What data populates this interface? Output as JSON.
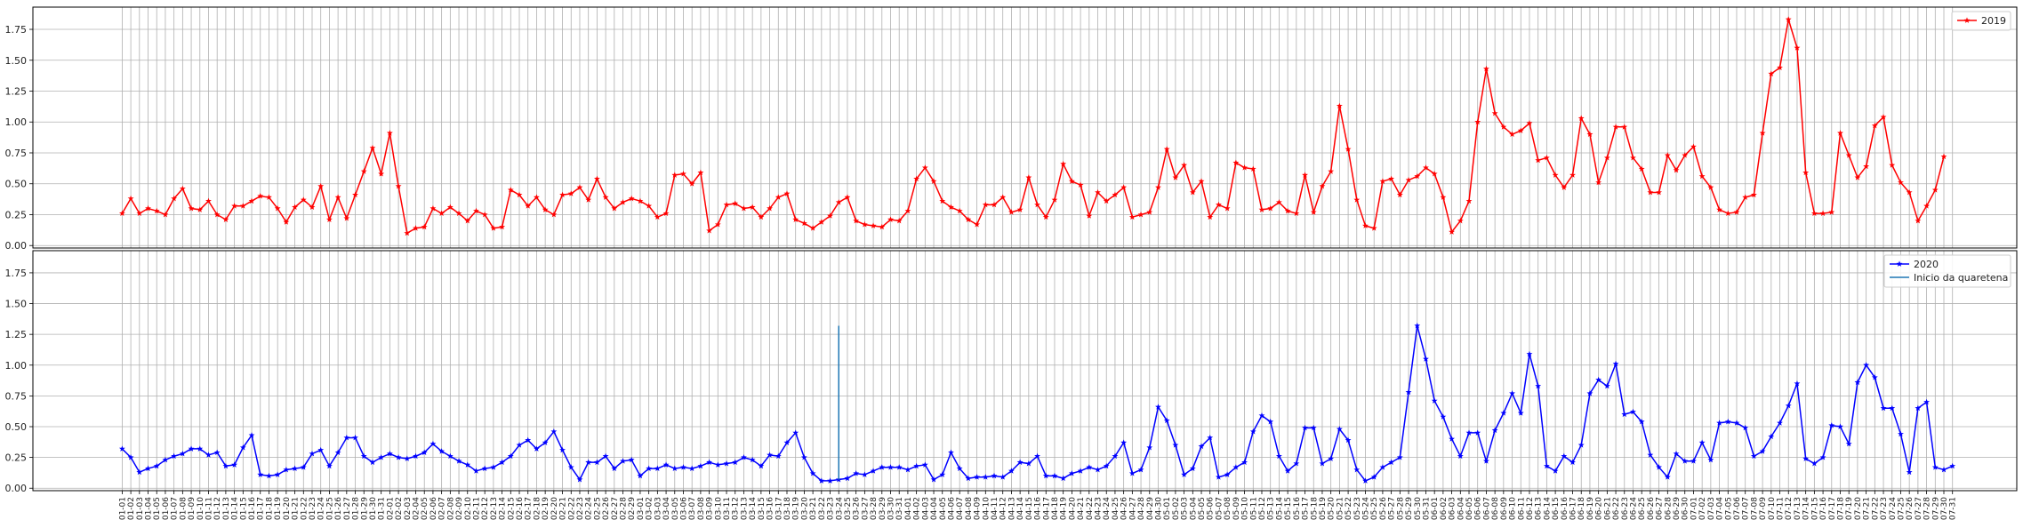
{
  "chart_data": [
    {
      "type": "line",
      "title": "",
      "xlabel": "",
      "ylabel": "",
      "ylim": [
        -0.02,
        1.93
      ],
      "yticks": [
        "0.00",
        "0.25",
        "0.50",
        "0.75",
        "1.00",
        "1.25",
        "1.50",
        "1.75"
      ],
      "grid": true,
      "legend": "top-right",
      "series": [
        {
          "name": "2019",
          "color": "#ff0000",
          "marker": "star",
          "values": [
            0.26,
            0.38,
            0.26,
            0.3,
            0.28,
            0.25,
            0.38,
            0.46,
            0.3,
            0.29,
            0.36,
            0.25,
            0.21,
            0.32,
            0.32,
            0.36,
            0.4,
            0.39,
            0.3,
            0.19,
            0.31,
            0.37,
            0.31,
            0.48,
            0.21,
            0.39,
            0.22,
            0.41,
            0.6,
            0.79,
            0.58,
            0.91,
            0.48,
            0.1,
            0.14,
            0.15,
            0.3,
            0.26,
            0.31,
            0.26,
            0.2,
            0.28,
            0.25,
            0.14,
            0.15,
            0.45,
            0.41,
            0.32,
            0.39,
            0.29,
            0.25,
            0.41,
            0.42,
            0.47,
            0.37,
            0.54,
            0.39,
            0.3,
            0.35,
            0.38,
            0.36,
            0.32,
            0.23,
            0.26,
            0.57,
            0.58,
            0.5,
            0.59,
            0.12,
            0.17,
            0.33,
            0.34,
            0.3,
            0.31,
            0.23,
            0.3,
            0.39,
            0.42,
            0.21,
            0.18,
            0.14,
            0.19,
            0.24,
            0.35,
            0.39,
            0.2,
            0.17,
            0.16,
            0.15,
            0.21,
            0.2,
            0.28,
            0.54,
            0.63,
            0.52,
            0.36,
            0.31,
            0.28,
            0.21,
            0.17,
            0.33,
            0.33,
            0.39,
            0.27,
            0.29,
            0.55,
            0.33,
            0.23,
            0.37,
            0.66,
            0.52,
            0.49,
            0.24,
            0.43,
            0.36,
            0.41,
            0.47,
            0.23,
            0.25,
            0.27,
            0.47,
            0.78,
            0.55,
            0.65,
            0.43,
            0.52,
            0.23,
            0.33,
            0.3,
            0.67,
            0.63,
            0.62,
            0.29,
            0.3,
            0.35,
            0.28,
            0.26,
            0.57,
            0.27,
            0.48,
            0.6,
            1.13,
            0.78,
            0.37,
            0.16,
            0.14,
            0.52,
            0.54,
            0.41,
            0.53,
            0.56,
            0.63,
            0.58,
            0.39,
            0.11,
            0.2,
            0.36,
            1.0,
            1.43,
            1.07,
            0.96,
            0.9,
            0.93,
            0.99,
            0.69,
            0.71,
            0.57,
            0.47,
            0.57,
            1.03,
            0.9,
            0.51,
            0.71,
            0.96,
            0.96,
            0.71,
            0.62,
            0.43,
            0.43,
            0.73,
            0.61,
            0.73,
            0.8,
            0.56,
            0.47,
            0.29,
            0.26,
            0.27,
            0.39,
            0.41,
            0.91,
            1.39,
            1.44,
            1.83,
            1.6,
            0.59,
            0.26,
            0.26,
            0.27,
            0.91,
            0.73,
            0.55,
            0.64,
            0.97,
            1.04,
            0.65,
            0.51,
            0.43,
            0.2,
            0.32,
            0.45,
            0.72
          ]
        }
      ]
    },
    {
      "type": "line",
      "title": "",
      "xlabel": "",
      "ylabel": "",
      "ylim": [
        -0.02,
        1.93
      ],
      "yticks": [
        "0.00",
        "0.25",
        "0.50",
        "0.75",
        "1.00",
        "1.25",
        "1.50",
        "1.75"
      ],
      "grid": true,
      "legend": "top-right",
      "series": [
        {
          "name": "2020",
          "color": "#0000ff",
          "marker": "star",
          "values": [
            0.32,
            0.25,
            0.13,
            0.16,
            0.18,
            0.23,
            0.26,
            0.28,
            0.32,
            0.32,
            0.27,
            0.29,
            0.18,
            0.19,
            0.33,
            0.43,
            0.11,
            0.1,
            0.11,
            0.15,
            0.16,
            0.17,
            0.28,
            0.31,
            0.18,
            0.29,
            0.41,
            0.41,
            0.26,
            0.21,
            0.25,
            0.28,
            0.25,
            0.24,
            0.26,
            0.29,
            0.36,
            0.3,
            0.26,
            0.22,
            0.19,
            0.14,
            0.16,
            0.17,
            0.21,
            0.26,
            0.35,
            0.39,
            0.32,
            0.37,
            0.46,
            0.31,
            0.17,
            0.07,
            0.21,
            0.21,
            0.26,
            0.16,
            0.22,
            0.23,
            0.1,
            0.16,
            0.16,
            0.19,
            0.16,
            0.17,
            0.16,
            0.18,
            0.21,
            0.19,
            0.2,
            0.21,
            0.25,
            0.23,
            0.18,
            0.27,
            0.26,
            0.37,
            0.45,
            0.25,
            0.12,
            0.06,
            0.06,
            0.07,
            0.08,
            0.12,
            0.11,
            0.14,
            0.17,
            0.17,
            0.17,
            0.15,
            0.18,
            0.19,
            0.07,
            0.11,
            0.29,
            0.16,
            0.08,
            0.09,
            0.09,
            0.1,
            0.09,
            0.14,
            0.21,
            0.2,
            0.26,
            0.1,
            0.1,
            0.08,
            0.12,
            0.14,
            0.17,
            0.15,
            0.18,
            0.26,
            0.37,
            0.12,
            0.15,
            0.33,
            0.66,
            0.55,
            0.35,
            0.11,
            0.16,
            0.34,
            0.41,
            0.09,
            0.11,
            0.17,
            0.21,
            0.46,
            0.59,
            0.54,
            0.26,
            0.14,
            0.2,
            0.49,
            0.49,
            0.2,
            0.24,
            0.48,
            0.39,
            0.15,
            0.06,
            0.09,
            0.17,
            0.21,
            0.25,
            0.78,
            1.32,
            1.05,
            0.71,
            0.58,
            0.4,
            0.26,
            0.45,
            0.45,
            0.22,
            0.47,
            0.61,
            0.77,
            0.61,
            1.09,
            0.83,
            0.18,
            0.14,
            0.26,
            0.21,
            0.35,
            0.77,
            0.88,
            0.83,
            1.01,
            0.6,
            0.62,
            0.54,
            0.27,
            0.17,
            0.09,
            0.28,
            0.22,
            0.22,
            0.37,
            0.23,
            0.53,
            0.54,
            0.53,
            0.49,
            0.26,
            0.3,
            0.42,
            0.53,
            0.67,
            0.85,
            0.24,
            0.2,
            0.25,
            0.51,
            0.5,
            0.36,
            0.86,
            1.0,
            0.9,
            0.65,
            0.65,
            0.44,
            0.13,
            0.65,
            0.7,
            0.17,
            0.15,
            0.18
          ]
        },
        {
          "name": "Inicio da quaretena",
          "color": "#1f77b4",
          "type": "vline",
          "x_index": 83,
          "y_range": [
            0.07,
            1.32
          ]
        }
      ]
    }
  ],
  "x_labels": [
    "01-01",
    "01-02",
    "01-03",
    "01-04",
    "01-05",
    "01-06",
    "01-07",
    "01-08",
    "01-09",
    "01-10",
    "01-11",
    "01-12",
    "01-13",
    "01-14",
    "01-15",
    "01-16",
    "01-17",
    "01-18",
    "01-19",
    "01-20",
    "01-21",
    "01-22",
    "01-23",
    "01-24",
    "01-25",
    "01-26",
    "01-27",
    "01-28",
    "01-29",
    "01-30",
    "01-31",
    "02-01",
    "02-02",
    "02-03",
    "02-04",
    "02-05",
    "02-06",
    "02-07",
    "02-08",
    "02-09",
    "02-10",
    "02-11",
    "02-12",
    "02-13",
    "02-14",
    "02-15",
    "02-16",
    "02-17",
    "02-18",
    "02-19",
    "02-20",
    "02-21",
    "02-22",
    "02-23",
    "02-24",
    "02-25",
    "02-26",
    "02-27",
    "02-28",
    "02-29",
    "03-01",
    "03-02",
    "03-03",
    "03-04",
    "03-05",
    "03-06",
    "03-07",
    "03-08",
    "03-09",
    "03-10",
    "03-11",
    "03-12",
    "03-13",
    "03-14",
    "03-15",
    "03-16",
    "03-17",
    "03-18",
    "03-19",
    "03-20",
    "03-21",
    "03-22",
    "03-23",
    "03-24",
    "03-25",
    "03-26",
    "03-27",
    "03-28",
    "03-29",
    "03-30",
    "03-31",
    "04-01",
    "04-02",
    "04-03",
    "04-04",
    "04-05",
    "04-06",
    "04-07",
    "04-08",
    "04-09",
    "04-10",
    "04-11",
    "04-12",
    "04-13",
    "04-14",
    "04-15",
    "04-16",
    "04-17",
    "04-18",
    "04-19",
    "04-20",
    "04-21",
    "04-22",
    "04-23",
    "04-24",
    "04-25",
    "04-26",
    "04-27",
    "04-28",
    "04-29",
    "04-30",
    "05-01",
    "05-02",
    "05-03",
    "05-04",
    "05-05",
    "05-06",
    "05-07",
    "05-08",
    "05-09",
    "05-10",
    "05-11",
    "05-12",
    "05-13",
    "05-14",
    "05-15",
    "05-16",
    "05-17",
    "05-18",
    "05-19",
    "05-20",
    "05-21",
    "05-22",
    "05-23",
    "05-24",
    "05-25",
    "05-26",
    "05-27",
    "05-28",
    "05-29",
    "05-30",
    "05-31",
    "06-01",
    "06-02",
    "06-03",
    "06-04",
    "06-05",
    "06-06",
    "06-07",
    "06-08",
    "06-09",
    "06-10",
    "06-11",
    "06-12",
    "06-13",
    "06-14",
    "06-15",
    "06-16",
    "06-17",
    "06-18",
    "06-19",
    "06-20",
    "06-21",
    "06-22",
    "06-23",
    "06-24",
    "06-25",
    "06-26",
    "06-27",
    "06-28",
    "06-29",
    "06-30",
    "07-01",
    "07-02",
    "07-03",
    "07-04",
    "07-05",
    "07-06",
    "07-07",
    "07-08",
    "07-09",
    "07-10",
    "07-11",
    "07-12",
    "07-13",
    "07-14",
    "07-15",
    "07-16",
    "07-17",
    "07-18",
    "07-19",
    "07-20",
    "07-21",
    "07-22",
    "07-23",
    "07-24",
    "07-25",
    "07-26",
    "07-27",
    "07-28",
    "07-29",
    "07-30",
    "07-31"
  ]
}
